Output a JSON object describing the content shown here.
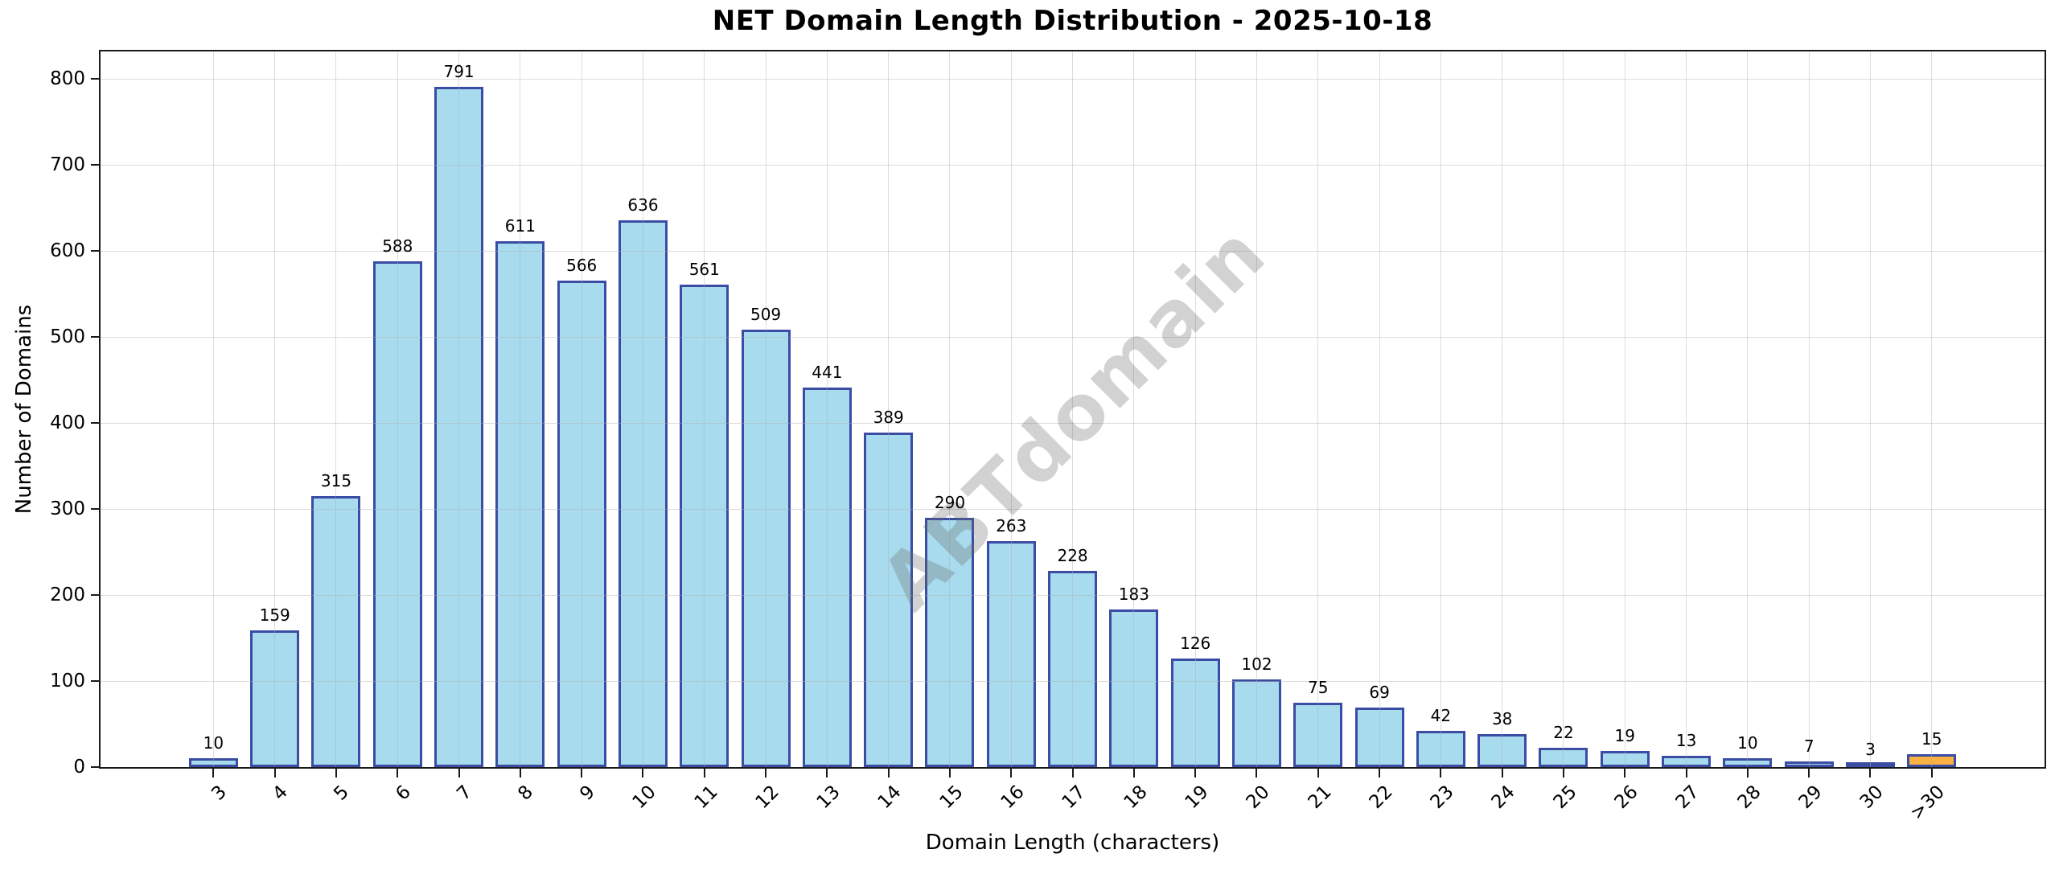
{
  "title": "NET Domain Length Distribution - 2025-10-18",
  "watermark": "ABTdomain",
  "chart_data": {
    "type": "bar",
    "title": "NET Domain Length Distribution - 2025-10-18",
    "xlabel": "Domain Length (characters)",
    "ylabel": "Number of Domains",
    "categories": [
      "3",
      "4",
      "5",
      "6",
      "7",
      "8",
      "9",
      "10",
      "11",
      "12",
      "13",
      "14",
      "15",
      "16",
      "17",
      "18",
      "19",
      "20",
      "21",
      "22",
      "23",
      "24",
      "25",
      "26",
      "27",
      "28",
      "29",
      "30",
      ">30"
    ],
    "values": [
      10,
      159,
      315,
      588,
      791,
      611,
      566,
      636,
      561,
      509,
      441,
      389,
      290,
      263,
      228,
      183,
      126,
      102,
      75,
      69,
      42,
      38,
      22,
      19,
      13,
      10,
      7,
      3,
      15
    ],
    "ylim": [
      0,
      832
    ],
    "yticks": [
      0,
      100,
      200,
      300,
      400,
      500,
      600,
      700,
      800
    ],
    "grid": true,
    "legend": null,
    "bar_color": "#A7DBED",
    "bar_edge_color": "#3A4CA4",
    "highlight_color": "#FBB042",
    "highlight_category": ">30",
    "watermark_color": "rgba(105,105,105,0.30)"
  }
}
